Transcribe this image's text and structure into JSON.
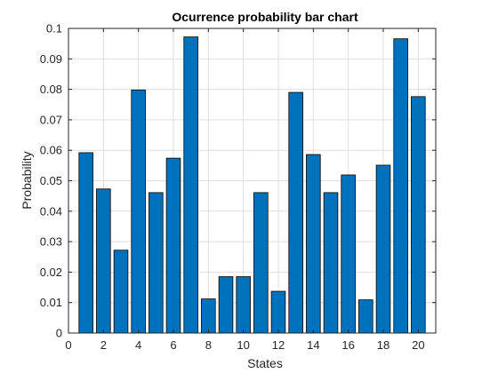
{
  "chart_data": {
    "type": "bar",
    "title": "Ocurrence probability bar chart",
    "xlabel": "States",
    "ylabel": "Probability",
    "x": [
      1,
      2,
      3,
      4,
      5,
      6,
      7,
      8,
      9,
      10,
      11,
      12,
      13,
      14,
      15,
      16,
      17,
      18,
      19,
      20
    ],
    "values": [
      0.0592,
      0.0473,
      0.0272,
      0.0798,
      0.0461,
      0.0574,
      0.0972,
      0.0112,
      0.0185,
      0.0185,
      0.0461,
      0.0137,
      0.079,
      0.0586,
      0.0461,
      0.0519,
      0.0109,
      0.0551,
      0.0966,
      0.0776
    ],
    "xlim": [
      0,
      21
    ],
    "ylim": [
      0,
      0.1
    ],
    "xticks": [
      0,
      2,
      4,
      6,
      8,
      10,
      12,
      14,
      16,
      18,
      20
    ],
    "xtick_labels": [
      "0",
      "2",
      "4",
      "6",
      "8",
      "10",
      "12",
      "14",
      "16",
      "18",
      "20"
    ],
    "yticks": [
      0,
      0.01,
      0.02,
      0.03,
      0.04,
      0.05,
      0.06,
      0.07,
      0.08,
      0.09,
      0.1
    ],
    "ytick_labels": [
      "0",
      "0.01",
      "0.02",
      "0.03",
      "0.04",
      "0.05",
      "0.06",
      "0.07",
      "0.08",
      "0.09",
      "0.1"
    ],
    "grid": true,
    "bar_color": "#0072bd",
    "bar_edge_color": "#000000"
  }
}
